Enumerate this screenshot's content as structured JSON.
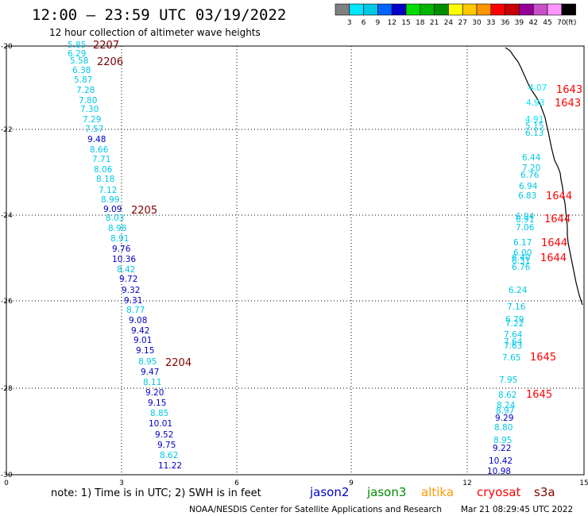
{
  "header": {
    "title": "12:00 – 23:59 UTC 03/19/2022",
    "subtitle": "12 hour collection of altimeter wave heights"
  },
  "legend": {
    "colors": [
      "#808080",
      "#00e5ff",
      "#00c8e6",
      "#0064ff",
      "#0000c8",
      "#00dc00",
      "#00b400",
      "#008c00",
      "#ffff00",
      "#ffc800",
      "#ff9600",
      "#ff0000",
      "#c80000",
      "#960096",
      "#c850c8",
      "#ff96ff",
      "#000000"
    ],
    "labels": [
      "3",
      "6",
      "9",
      "12",
      "15",
      "18",
      "21",
      "24",
      "27",
      "30",
      "33",
      "36",
      "39",
      "42",
      "45",
      "70",
      "(ft)"
    ]
  },
  "axes": {
    "x_ticks": [
      "0",
      "3",
      "6",
      "9",
      "12",
      "15"
    ],
    "y_ticks": [
      "-20",
      "-22",
      "-24",
      "-26",
      "-28",
      "-30"
    ]
  },
  "tracks": [
    {
      "name": "west",
      "points": [
        {
          "v": "5.85",
          "c": "#00c8e6"
        },
        {
          "v": "6.29",
          "c": "#00c8e6"
        },
        {
          "v": "5.58",
          "c": "#00c8e6"
        },
        {
          "v": "6.38",
          "c": "#00c8e6"
        },
        {
          "v": "5.87",
          "c": "#00c8e6"
        },
        {
          "v": "7.28",
          "c": "#00c8e6"
        },
        {
          "v": "7.80",
          "c": "#00c8e6"
        },
        {
          "v": "7.30",
          "c": "#00c8e6"
        },
        {
          "v": "7.29",
          "c": "#00c8e6"
        },
        {
          "v": "7.57",
          "c": "#00c8e6"
        },
        {
          "v": "9.48",
          "c": "#0000c8"
        },
        {
          "v": "8.66",
          "c": "#00c8e6"
        },
        {
          "v": "7.71",
          "c": "#00c8e6"
        },
        {
          "v": "8.06",
          "c": "#00c8e6"
        },
        {
          "v": "8.18",
          "c": "#00c8e6"
        },
        {
          "v": "7.12",
          "c": "#00c8e6"
        },
        {
          "v": "8.99",
          "c": "#00c8e6"
        },
        {
          "v": "9.09",
          "c": "#0000c8"
        },
        {
          "v": "8.03",
          "c": "#00c8e6"
        },
        {
          "v": "8.98",
          "c": "#00c8e6"
        },
        {
          "v": "8.91",
          "c": "#00c8e6"
        },
        {
          "v": "9.76",
          "c": "#0000c8"
        },
        {
          "v": "10.36",
          "c": "#0000c8"
        },
        {
          "v": "8.42",
          "c": "#00c8e6"
        },
        {
          "v": "9.72",
          "c": "#0000c8"
        },
        {
          "v": "9.32",
          "c": "#0000c8"
        },
        {
          "v": "9.31",
          "c": "#0000c8"
        },
        {
          "v": "8.77",
          "c": "#00c8e6"
        },
        {
          "v": "9.08",
          "c": "#0000c8"
        },
        {
          "v": "9.42",
          "c": "#0000c8"
        },
        {
          "v": "9.01",
          "c": "#0000c8"
        },
        {
          "v": "9.15",
          "c": "#0000c8"
        },
        {
          "v": "8.95",
          "c": "#00c8e6"
        },
        {
          "v": "9.47",
          "c": "#0000c8"
        },
        {
          "v": "8.11",
          "c": "#00c8e6"
        },
        {
          "v": "9.20",
          "c": "#0000c8"
        },
        {
          "v": "9.15",
          "c": "#0000c8"
        },
        {
          "v": "8.85",
          "c": "#00c8e6"
        },
        {
          "v": "10.01",
          "c": "#0000c8"
        },
        {
          "v": "9.52",
          "c": "#0000c8"
        },
        {
          "v": "9.75",
          "c": "#0000c8"
        },
        {
          "v": "8.62",
          "c": "#00c8e6"
        },
        {
          "v": "11.22",
          "c": "#0000c8"
        }
      ]
    },
    {
      "name": "east-north",
      "points": [
        {
          "v": "4.07",
          "c": "#00e5ff"
        },
        {
          "v": "4.93",
          "c": "#00e5ff"
        },
        {
          "v": "4.91",
          "c": "#00e5ff"
        },
        {
          "v": "5.15",
          "c": "#00c8e6"
        },
        {
          "v": "6.13",
          "c": "#00c8e6"
        }
      ]
    },
    {
      "name": "east-mid",
      "points": [
        {
          "v": "6.44",
          "c": "#00c8e6"
        },
        {
          "v": "7.20",
          "c": "#00c8e6"
        },
        {
          "v": "6.76",
          "c": "#00c8e6"
        },
        {
          "v": "6.94",
          "c": "#00c8e6"
        },
        {
          "v": "6.83",
          "c": "#00c8e6"
        },
        {
          "v": "6.94",
          "c": "#00c8e6"
        },
        {
          "v": "6.91",
          "c": "#00c8e6"
        },
        {
          "v": "7.06",
          "c": "#00c8e6"
        },
        {
          "v": "6.17",
          "c": "#00c8e6"
        },
        {
          "v": "6.00",
          "c": "#00c8e6"
        },
        {
          "v": "6.40",
          "c": "#00c8e6"
        },
        {
          "v": "6.31",
          "c": "#00c8e6"
        },
        {
          "v": "6.76",
          "c": "#00c8e6"
        }
      ]
    },
    {
      "name": "east-south",
      "points": [
        {
          "v": "6.24",
          "c": "#00c8e6"
        },
        {
          "v": "7.16",
          "c": "#00c8e6"
        },
        {
          "v": "6.79",
          "c": "#00c8e6"
        },
        {
          "v": "7.22",
          "c": "#00c8e6"
        },
        {
          "v": "7.64",
          "c": "#00c8e6"
        },
        {
          "v": "7.64",
          "c": "#00c8e6"
        },
        {
          "v": "7.63",
          "c": "#00c8e6"
        },
        {
          "v": "7.65",
          "c": "#00c8e6"
        },
        {
          "v": "7.95",
          "c": "#00c8e6"
        },
        {
          "v": "8.62",
          "c": "#00c8e6"
        },
        {
          "v": "8.24",
          "c": "#00c8e6"
        },
        {
          "v": "8.97",
          "c": "#00c8e6"
        },
        {
          "v": "9.29",
          "c": "#0000c8"
        },
        {
          "v": "8.80",
          "c": "#00c8e6"
        },
        {
          "v": "8.95",
          "c": "#00c8e6"
        },
        {
          "v": "9.22",
          "c": "#0000c8"
        },
        {
          "v": "10.42",
          "c": "#0000c8"
        },
        {
          "v": "10.98",
          "c": "#0000c8"
        }
      ]
    }
  ],
  "time_labels": [
    {
      "t": "2207",
      "c": "#800000"
    },
    {
      "t": "2206",
      "c": "#800000"
    },
    {
      "t": "2205",
      "c": "#800000"
    },
    {
      "t": "2204",
      "c": "#800000"
    },
    {
      "t": "1643",
      "c": "#ff0000"
    },
    {
      "t": "1643",
      "c": "#ff0000"
    },
    {
      "t": "1644",
      "c": "#ff0000"
    },
    {
      "t": "1644",
      "c": "#ff0000"
    },
    {
      "t": "1644",
      "c": "#ff0000"
    },
    {
      "t": "1644",
      "c": "#ff0000"
    },
    {
      "t": "1645",
      "c": "#ff0000"
    },
    {
      "t": "1645",
      "c": "#ff0000"
    }
  ],
  "footer": {
    "note": "note:  1) Time is in UTC;  2) SWH is in feet",
    "satellites": [
      {
        "name": "jason2",
        "c": "#0000c8"
      },
      {
        "name": "jason3",
        "c": "#008c00"
      },
      {
        "name": "altika",
        "c": "#ff9600"
      },
      {
        "name": "cryosat",
        "c": "#ff0000"
      },
      {
        "name": "s3a",
        "c": "#800000"
      }
    ],
    "credit": "NOAA/NESDIS Center for Satellite Applications and Research",
    "timestamp": "Mar 21 08:29:45 UTC 2022"
  }
}
